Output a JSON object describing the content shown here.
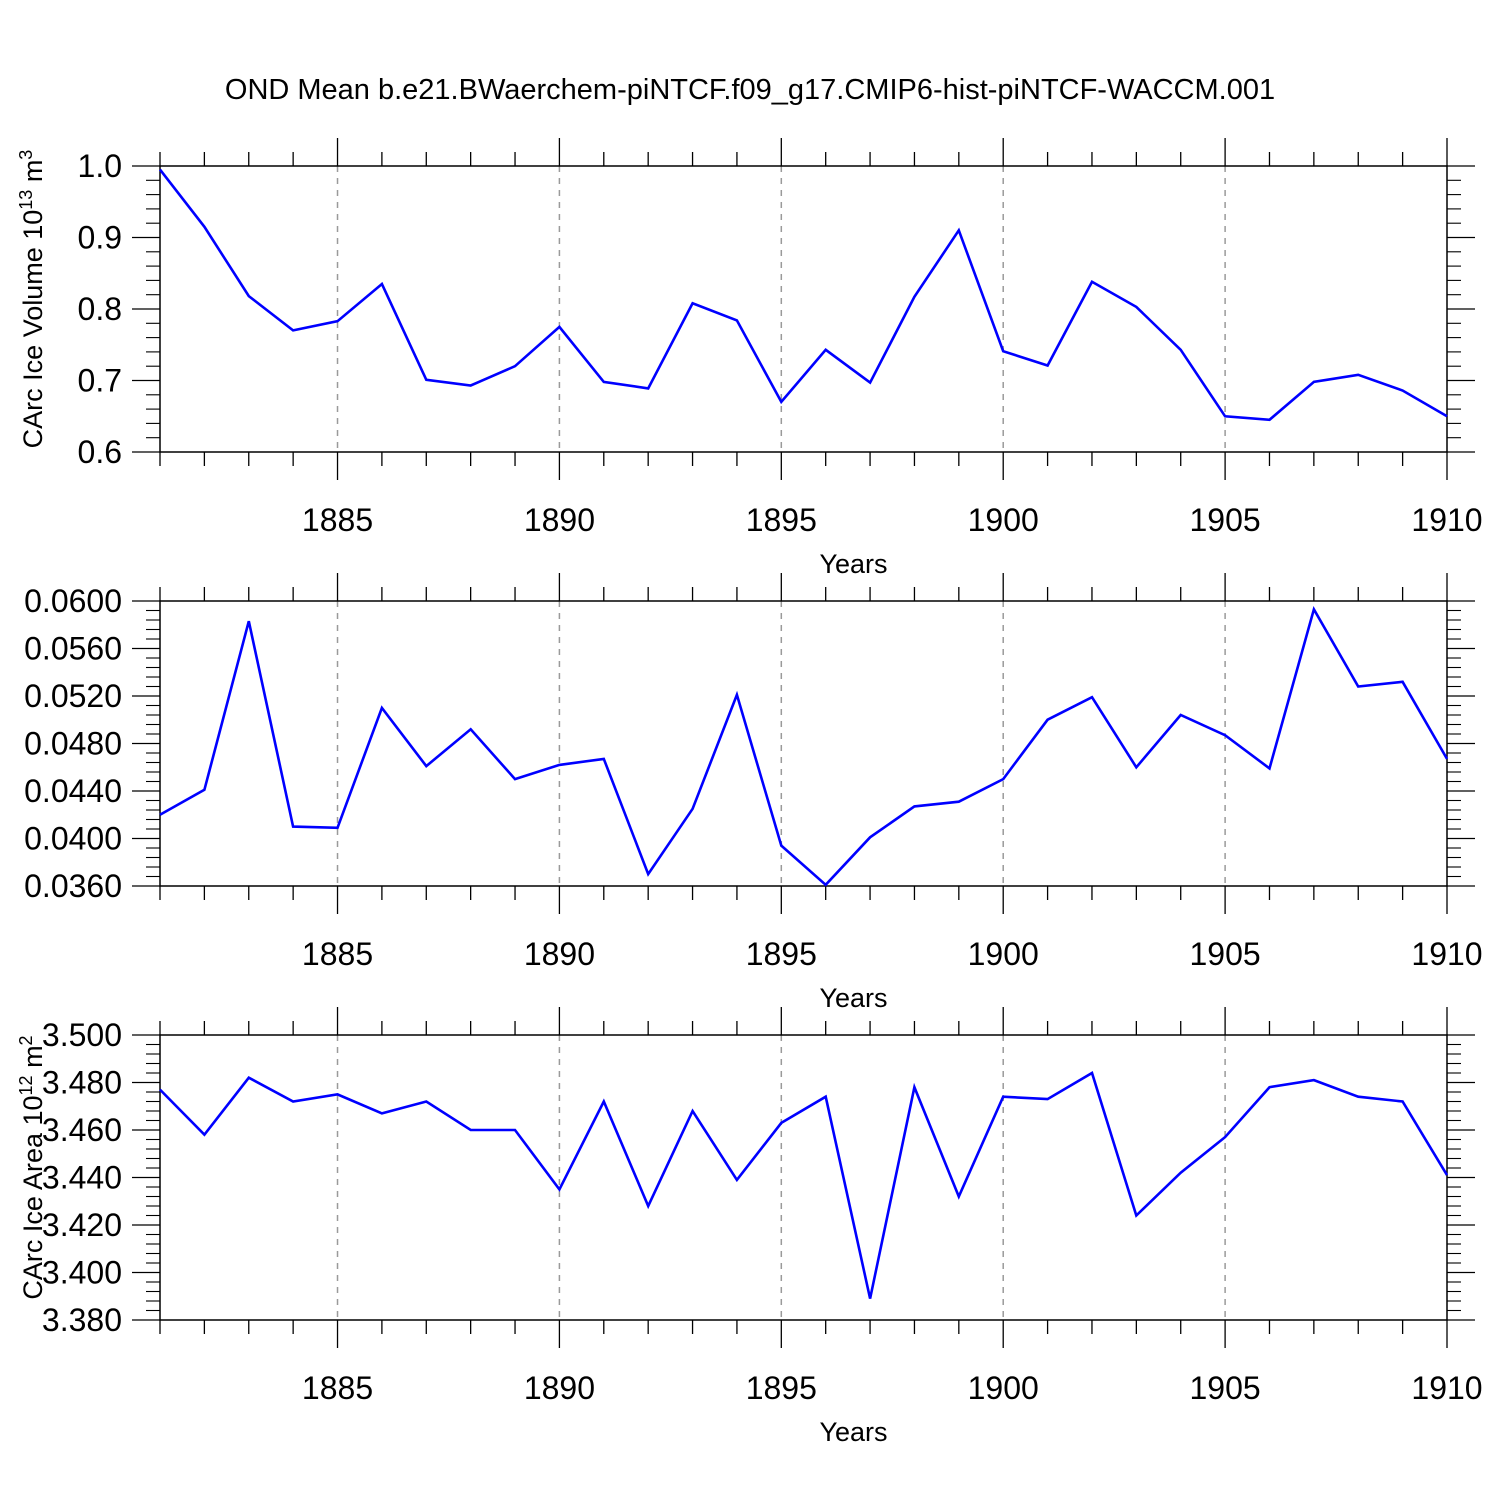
{
  "title": "OND Mean b.e21.BWaerchem-piNTCF.f09_g17.CMIP6-hist-piNTCF-WACCM.001",
  "colors": {
    "line": "#0000ff",
    "axis": "#000000",
    "grid": "#9a9a9a"
  },
  "chart_data": [
    {
      "type": "line",
      "xlabel": "Years",
      "ylabel": "CArc Ice Volume 10",
      "ylabel_sup": "13",
      "ylabel_unit": " m",
      "ylabel_unit_sup": "3",
      "x": [
        1881,
        1882,
        1883,
        1884,
        1885,
        1886,
        1887,
        1888,
        1889,
        1890,
        1891,
        1892,
        1893,
        1894,
        1895,
        1896,
        1897,
        1898,
        1899,
        1900,
        1901,
        1902,
        1903,
        1904,
        1905,
        1906,
        1907,
        1908,
        1909,
        1910
      ],
      "values": [
        0.995,
        0.915,
        0.818,
        0.77,
        0.783,
        0.835,
        0.701,
        0.693,
        0.72,
        0.775,
        0.698,
        0.689,
        0.808,
        0.784,
        0.67,
        0.743,
        0.697,
        0.817,
        0.91,
        0.741,
        0.721,
        0.838,
        0.803,
        0.743,
        0.65,
        0.645,
        0.698,
        0.708,
        0.686,
        0.65
      ],
      "xlim": [
        1881,
        1910
      ],
      "ylim": [
        0.6,
        1.0
      ],
      "xticks": [
        "1885",
        "1890",
        "1895",
        "1900",
        "1905",
        "1910"
      ],
      "yticks": [
        "0.6",
        "0.7",
        "0.8",
        "0.9",
        "1.0"
      ],
      "grid": "vertical dashed"
    },
    {
      "type": "line",
      "xlabel": "Years",
      "ylabel": "",
      "x": [
        1881,
        1882,
        1883,
        1884,
        1885,
        1886,
        1887,
        1888,
        1889,
        1890,
        1891,
        1892,
        1893,
        1894,
        1895,
        1896,
        1897,
        1898,
        1899,
        1900,
        1901,
        1902,
        1903,
        1904,
        1905,
        1906,
        1907,
        1908,
        1909,
        1910
      ],
      "values": [
        0.042,
        0.0441,
        0.0583,
        0.041,
        0.0409,
        0.051,
        0.0461,
        0.0492,
        0.045,
        0.0462,
        0.0467,
        0.037,
        0.0425,
        0.0521,
        0.0394,
        0.0361,
        0.0401,
        0.0427,
        0.0431,
        0.045,
        0.05,
        0.0519,
        0.046,
        0.0504,
        0.0487,
        0.0459,
        0.0593,
        0.0528,
        0.0532,
        0.0467
      ],
      "xlim": [
        1881,
        1910
      ],
      "ylim": [
        0.036,
        0.06
      ],
      "xticks": [
        "1885",
        "1890",
        "1895",
        "1900",
        "1905",
        "1910"
      ],
      "yticks": [
        "0.0360",
        "0.0400",
        "0.0440",
        "0.0480",
        "0.0520",
        "0.0560",
        "0.0600"
      ],
      "grid": "vertical dashed"
    },
    {
      "type": "line",
      "xlabel": "Years",
      "ylabel": "CArc Ice Area 10",
      "ylabel_sup": "12",
      "ylabel_unit": " m",
      "ylabel_unit_sup": "2",
      "x": [
        1881,
        1882,
        1883,
        1884,
        1885,
        1886,
        1887,
        1888,
        1889,
        1890,
        1891,
        1892,
        1893,
        1894,
        1895,
        1896,
        1897,
        1898,
        1899,
        1900,
        1901,
        1902,
        1903,
        1904,
        1905,
        1906,
        1907,
        1908,
        1909,
        1910
      ],
      "values": [
        3.477,
        3.458,
        3.482,
        3.472,
        3.475,
        3.467,
        3.472,
        3.46,
        3.46,
        3.435,
        3.472,
        3.428,
        3.468,
        3.439,
        3.463,
        3.474,
        3.389,
        3.478,
        3.432,
        3.474,
        3.473,
        3.484,
        3.424,
        3.442,
        3.457,
        3.478,
        3.481,
        3.474,
        3.472,
        3.441
      ],
      "xlim": [
        1881,
        1910
      ],
      "ylim": [
        3.38,
        3.5
      ],
      "xticks": [
        "1885",
        "1890",
        "1895",
        "1900",
        "1905",
        "1910"
      ],
      "yticks": [
        "3.380",
        "3.400",
        "3.420",
        "3.440",
        "3.460",
        "3.480",
        "3.500"
      ],
      "grid": "vertical dashed"
    }
  ]
}
